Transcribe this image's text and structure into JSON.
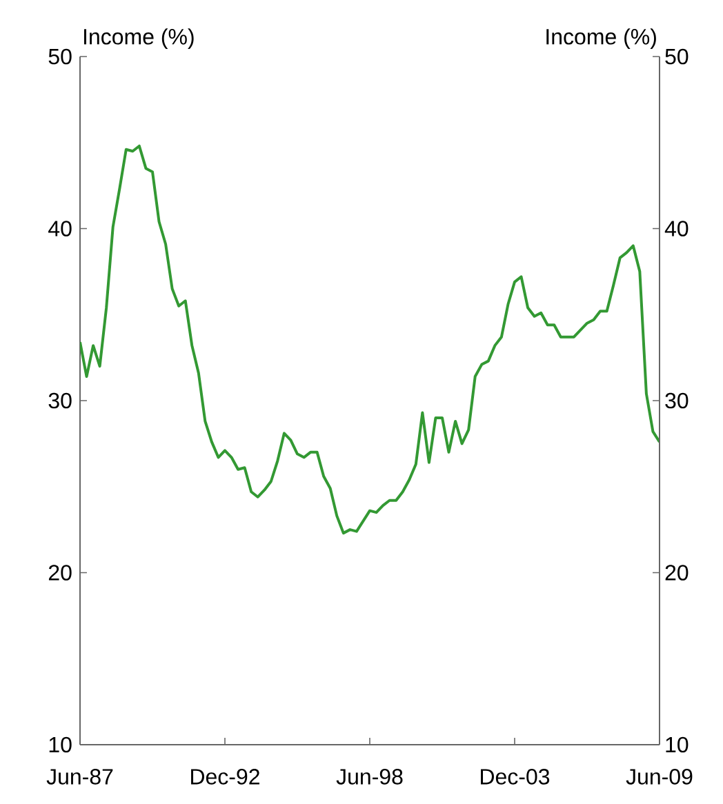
{
  "chart_data": {
    "type": "line",
    "ylabel": "Income (%)",
    "y2label": "Income (%)",
    "x": [
      "1987-06",
      "1987-09",
      "1987-12",
      "1988-03",
      "1988-06",
      "1988-09",
      "1988-12",
      "1989-03",
      "1989-06",
      "1989-09",
      "1989-12",
      "1990-03",
      "1990-06",
      "1990-09",
      "1990-12",
      "1991-03",
      "1991-06",
      "1991-09",
      "1991-12",
      "1992-03",
      "1992-06",
      "1992-09",
      "1992-12",
      "1993-03",
      "1993-06",
      "1993-09",
      "1993-12",
      "1994-03",
      "1994-06",
      "1994-09",
      "1994-12",
      "1995-03",
      "1995-06",
      "1995-09",
      "1995-12",
      "1996-03",
      "1996-06",
      "1996-09",
      "1996-12",
      "1997-03",
      "1997-06",
      "1997-09",
      "1997-12",
      "1998-03",
      "1998-06",
      "1998-09",
      "1998-12",
      "1999-03",
      "1999-06",
      "1999-09",
      "1999-12",
      "2000-03",
      "2000-06",
      "2000-09",
      "2000-12",
      "2001-03",
      "2001-06",
      "2001-09",
      "2001-12",
      "2002-03",
      "2002-06",
      "2002-09",
      "2002-12",
      "2003-03",
      "2003-06",
      "2003-09",
      "2003-12",
      "2004-03",
      "2004-06",
      "2004-09",
      "2004-12",
      "2005-03",
      "2005-06",
      "2005-09",
      "2005-12",
      "2006-03",
      "2006-06",
      "2006-09",
      "2006-12",
      "2007-03",
      "2007-06",
      "2007-09",
      "2007-12",
      "2008-03",
      "2008-06",
      "2008-09",
      "2008-12",
      "2009-03",
      "2009-06"
    ],
    "series": [
      {
        "color": "#339933",
        "values": [
          33.4,
          31.4,
          33.2,
          32.0,
          35.4,
          40.1,
          42.3,
          44.6,
          44.5,
          44.8,
          43.5,
          43.3,
          40.4,
          39.1,
          36.5,
          35.5,
          35.8,
          33.2,
          31.6,
          28.8,
          27.6,
          26.7,
          27.1,
          26.7,
          26.0,
          26.1,
          24.7,
          24.4,
          24.8,
          25.3,
          26.5,
          28.1,
          27.7,
          26.9,
          26.7,
          27.0,
          27.0,
          25.6,
          24.9,
          23.3,
          22.3,
          22.5,
          22.4,
          23.0,
          23.6,
          23.5,
          23.9,
          24.2,
          24.2,
          24.7,
          25.4,
          26.3,
          29.3,
          26.4,
          29.0,
          29.0,
          27.0,
          28.8,
          27.5,
          28.3,
          31.4,
          32.1,
          32.3,
          33.2,
          33.7,
          35.6,
          36.9,
          37.2,
          35.4,
          34.9,
          35.1,
          34.4,
          34.4,
          33.7,
          33.7,
          33.7,
          34.1,
          34.5,
          34.7,
          35.2,
          35.2,
          36.7,
          38.3,
          38.6,
          39.0,
          37.5,
          30.4,
          28.2,
          27.6
        ]
      }
    ],
    "xlim": [
      "1987-06",
      "2009-06"
    ],
    "xticks": [
      {
        "value": "1987-06",
        "label": "Jun-87"
      },
      {
        "value": "1992-12",
        "label": "Dec-92"
      },
      {
        "value": "1998-06",
        "label": "Jun-98"
      },
      {
        "value": "2003-12",
        "label": "Dec-03"
      },
      {
        "value": "2009-06",
        "label": "Jun-09"
      }
    ],
    "ylim": [
      10,
      50
    ],
    "yticks": [
      10,
      20,
      30,
      40,
      50
    ],
    "y2lim": [
      10,
      50
    ],
    "y2ticks": [
      10,
      20,
      30,
      40,
      50
    ],
    "grid": false,
    "marker": "none",
    "line_style": "solid"
  }
}
